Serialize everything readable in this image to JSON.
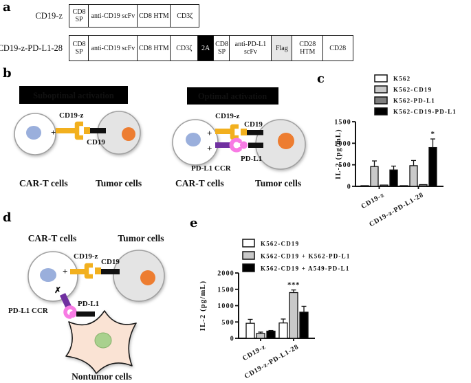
{
  "panels": {
    "a": {
      "label": "a",
      "rows": [
        {
          "name": "CD19-z",
          "segments": [
            {
              "label": "CD8 SP",
              "style": "plain"
            },
            {
              "label": "anti-CD19 scFv",
              "style": "plain"
            },
            {
              "label": "CD8 HTM",
              "style": "plain"
            },
            {
              "label": "CD3ζ",
              "style": "plain"
            }
          ]
        },
        {
          "name": "CD19-z-PD-L1-28",
          "segments": [
            {
              "label": "CD8 SP",
              "style": "plain"
            },
            {
              "label": "anti-CD19 scFv",
              "style": "plain"
            },
            {
              "label": "CD8 HTM",
              "style": "plain"
            },
            {
              "label": "CD3ζ",
              "style": "plain"
            },
            {
              "label": "2A",
              "style": "black"
            },
            {
              "label": "CD8 SP",
              "style": "plain"
            },
            {
              "label": "anti-PD-L1 scFv",
              "style": "plain"
            },
            {
              "label": "Flag",
              "style": "gray"
            },
            {
              "label": "CD28 HTM",
              "style": "plain"
            },
            {
              "label": "CD28",
              "style": "plain"
            }
          ]
        }
      ]
    },
    "b": {
      "label": "b",
      "left": {
        "header": "Suboptimal activation",
        "car_label": "CD19-z",
        "antigen_label": "CD19",
        "plus": "+",
        "cell1": "CAR-T cells",
        "cell2": "Tumor cells"
      },
      "right": {
        "header": "Optimal activation",
        "car_label": "CD19-z",
        "antigen_label": "CD19",
        "ccr_label": "PD-L1 CCR",
        "pdl1_label": "PD-L1",
        "plus": "+",
        "cell1": "CAR-T cells",
        "cell2": "Tumor cells"
      }
    },
    "c": {
      "label": "c"
    },
    "d": {
      "label": "d",
      "car_t": "CAR-T cells",
      "tumor": "Tumor cells",
      "nontumor": "Nontumor cells",
      "car_label": "CD19-z",
      "antigen_label": "CD19",
      "ccr_label": "PD-L1 CCR",
      "pdl1_label": "PD-L1",
      "plus": "+",
      "cross": "✗"
    },
    "e": {
      "label": "e"
    }
  },
  "colors": {
    "car_yellow": "#F2B01E",
    "ccr_purple": "#7030A0",
    "pink": "#F87BE4",
    "red": "#FF0000",
    "black_bar": "#111111",
    "orange_nucleus": "#ED7D31",
    "blue_nucleus": "#9AAFDC",
    "green_nucleus": "#A9D18E",
    "tumor_fill": "#E4E4E4",
    "cell_stroke": "#A0A0A0",
    "nontumor_fill": "#FAE3D4",
    "bar_light_gray": "#c9c9c9",
    "bar_dark_gray": "#7f7f7f"
  },
  "chart_data": [
    {
      "id": "c",
      "type": "bar",
      "title": "",
      "ylabel": "IL-2 (pg/mL)",
      "xlabel": "",
      "ylim": [
        0,
        1500
      ],
      "yticks": [
        0,
        500,
        1000,
        1500
      ],
      "grid": false,
      "legend_position": "top-right",
      "categories": [
        "CD19-z",
        "CD19-z-PD-L1-28"
      ],
      "series": [
        {
          "name": "K562",
          "color": "#ffffff",
          "values": [
            15,
            10
          ],
          "errors": [
            0,
            0
          ]
        },
        {
          "name": "K562-CD19",
          "color": "#c9c9c9",
          "values": [
            460,
            480
          ],
          "errors": [
            130,
            120
          ]
        },
        {
          "name": "K562-PD-L1",
          "color": "#7f7f7f",
          "values": [
            30,
            40
          ],
          "errors": [
            0,
            0
          ]
        },
        {
          "name": "K562-CD19-PD-L1",
          "color": "#000000",
          "values": [
            380,
            900
          ],
          "errors": [
            90,
            200
          ]
        }
      ],
      "annotations": [
        {
          "group_index": 1,
          "series_index": 3,
          "text": "*"
        }
      ]
    },
    {
      "id": "e",
      "type": "bar",
      "title": "",
      "ylabel": "IL-2 (pg/mL)",
      "xlabel": "",
      "ylim": [
        0,
        2000
      ],
      "yticks": [
        0,
        500,
        1000,
        1500,
        2000
      ],
      "grid": false,
      "legend_position": "top-right",
      "categories": [
        "CD19-z",
        "CD19-z-PD-L1-28"
      ],
      "series": [
        {
          "name": "K562-CD19",
          "color": "#ffffff",
          "values": [
            460,
            470
          ],
          "errors": [
            120,
            120
          ]
        },
        {
          "name": "K562-CD19 + K562-PD-L1",
          "color": "#c9c9c9",
          "values": [
            150,
            1400
          ],
          "errors": [
            40,
            80
          ]
        },
        {
          "name": "K562-CD19 + A549-PD-L1",
          "color": "#000000",
          "values": [
            220,
            800
          ],
          "errors": [
            20,
            180
          ]
        }
      ],
      "annotations": [
        {
          "group_index": 1,
          "series_index": 1,
          "text": "***"
        }
      ]
    }
  ]
}
